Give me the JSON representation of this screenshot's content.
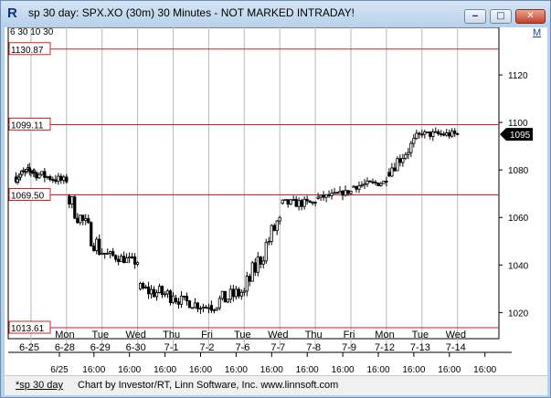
{
  "window": {
    "title": "sp 30 day: SPX.XO (30m) 30 Minutes - NOT MARKED INTRADAY!",
    "app_icon_glyph": "R",
    "minimize_glyph": "‒",
    "maximize_glyph": "□",
    "close_glyph": "✕"
  },
  "toolbar": {
    "m_button": "M"
  },
  "status": {
    "link": "*sp 30 day",
    "credit": "Chart by Investor/RT, Linn Software, Inc. www.linnsoft.com"
  },
  "chart_data": {
    "type": "candlestick",
    "symbol": "SPX.XO",
    "interval": "30 Minutes",
    "ylim": [
      1009,
      1140
    ],
    "y_ticks": [
      1020,
      1040,
      1060,
      1080,
      1100,
      1120
    ],
    "top_left_fragment": "6 30  10 30",
    "last_price": "1095",
    "horizontal_lines": [
      {
        "value": 1130.87,
        "label": "1130.87",
        "color": "#cc2222"
      },
      {
        "value": 1099.11,
        "label": "1099.11",
        "color": "#cc2222"
      },
      {
        "value": 1069.5,
        "label": "1069.50",
        "color": "#cc2222"
      },
      {
        "value": 1013.61,
        "label": "1013.61",
        "color": "#cc2222"
      }
    ],
    "day_labels": [
      {
        "weekday": "",
        "date": "6-25"
      },
      {
        "weekday": "Mon",
        "date": "6-28"
      },
      {
        "weekday": "Tue",
        "date": "6-29"
      },
      {
        "weekday": "Wed",
        "date": "6-30"
      },
      {
        "weekday": "Thu",
        "date": "7-1"
      },
      {
        "weekday": "Fri",
        "date": "7-2"
      },
      {
        "weekday": "Tue",
        "date": "7-6"
      },
      {
        "weekday": "Wed",
        "date": "7-7"
      },
      {
        "weekday": "Thu",
        "date": "7-8"
      },
      {
        "weekday": "Fri",
        "date": "7-9"
      },
      {
        "weekday": "Mon",
        "date": "7-12"
      },
      {
        "weekday": "Tue",
        "date": "7-13"
      },
      {
        "weekday": "Wed",
        "date": "7-14"
      }
    ],
    "time_labels": [
      "6/25",
      "16:00",
      "16:00",
      "16:00",
      "16:00",
      "16:00",
      "16:00",
      "16:00",
      "16:00",
      "16:00",
      "16:00",
      "16:00",
      "16:00"
    ],
    "path": [
      {
        "day": "6-25",
        "open": 1077,
        "close": 1080,
        "high": 1087,
        "low": 1071
      },
      {
        "day": "6-28",
        "open": 1079,
        "close": 1075,
        "high": 1084,
        "low": 1070
      },
      {
        "day": "6-29",
        "open": 1069,
        "close": 1045,
        "high": 1070,
        "low": 1038
      },
      {
        "day": "6-30",
        "open": 1045,
        "close": 1041,
        "high": 1049,
        "low": 1035
      },
      {
        "day": "7-1",
        "open": 1030,
        "close": 1027,
        "high": 1033,
        "low": 1010
      },
      {
        "day": "7-2",
        "open": 1026,
        "close": 1022,
        "high": 1031,
        "low": 1015
      },
      {
        "day": "7-6",
        "open": 1023,
        "close": 1029,
        "high": 1044,
        "low": 1018
      },
      {
        "day": "7-7",
        "open": 1029,
        "close": 1060,
        "high": 1062,
        "low": 1026
      },
      {
        "day": "7-8",
        "open": 1066,
        "close": 1066,
        "high": 1071,
        "low": 1058
      },
      {
        "day": "7-9",
        "open": 1068,
        "close": 1071,
        "high": 1074,
        "low": 1066
      },
      {
        "day": "7-12",
        "open": 1073,
        "close": 1075,
        "high": 1081,
        "low": 1070
      },
      {
        "day": "7-13",
        "open": 1079,
        "close": 1095,
        "high": 1099,
        "low": 1077
      },
      {
        "day": "7-14",
        "open": 1095,
        "close": 1095,
        "high": 1099,
        "low": 1088
      }
    ]
  }
}
